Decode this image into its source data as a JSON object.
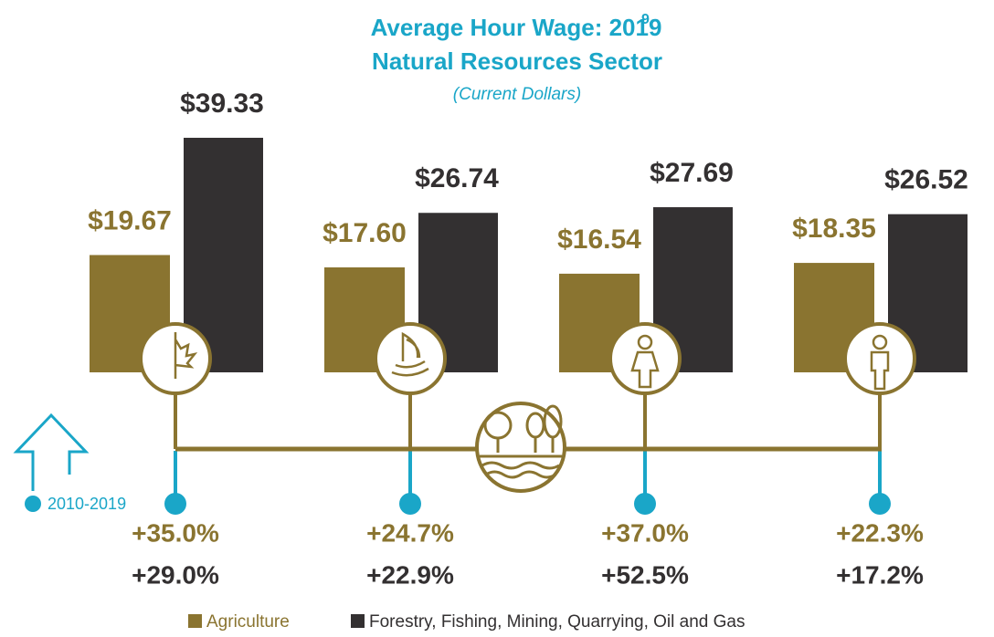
{
  "chart_data": {
    "type": "bar",
    "title": "Average Hour Wage: 2019",
    "title_footnote": "9",
    "subtitle": "Natural Resources Sector",
    "subtitle_note": "(Current Dollars)",
    "change_period": "2010-2019",
    "categories": [
      null,
      null,
      null,
      null
    ],
    "series": [
      {
        "name": "Agriculture",
        "color": "#8a7430",
        "values": [
          19.67,
          17.6,
          16.54,
          18.35
        ],
        "value_labels": [
          "$19.67",
          "$17.60",
          "$16.54",
          "$18.35"
        ],
        "change": [
          35.0,
          24.7,
          37.0,
          22.3
        ],
        "change_labels": [
          "+35.0%",
          "+24.7%",
          "+37.0%",
          "+22.3%"
        ]
      },
      {
        "name": "Forestry, Fishing, Mining, Quarrying, Oil and Gas",
        "color": "#333031",
        "values": [
          39.33,
          26.74,
          27.69,
          26.52
        ],
        "value_labels": [
          "$39.33",
          "$26.74",
          "$27.69",
          "$26.52"
        ],
        "change": [
          29.0,
          22.9,
          52.5,
          17.2
        ],
        "change_labels": [
          "+29.0%",
          "+22.9%",
          "+52.5%",
          "+17.2%"
        ]
      }
    ],
    "accent_color": "#1aa6c8"
  }
}
